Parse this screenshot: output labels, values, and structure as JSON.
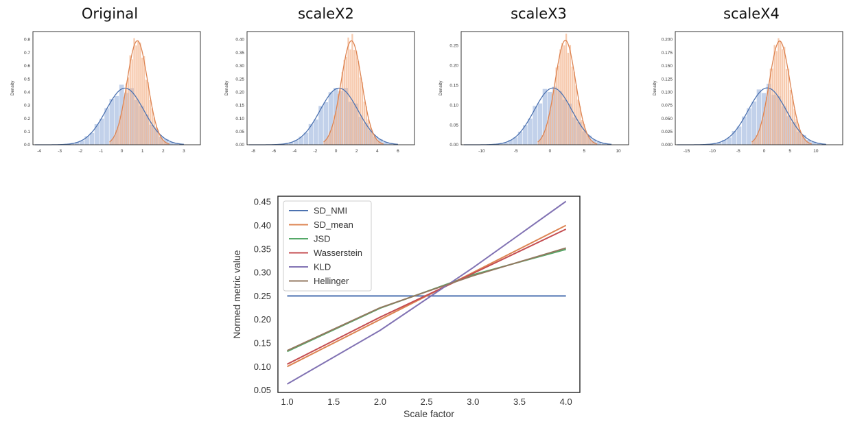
{
  "panels": [
    {
      "title": "Original",
      "ylabel": "Density",
      "xlim": [
        -4.3,
        3.8
      ],
      "ylim": [
        0,
        0.86
      ],
      "xticks": [
        "-4",
        "-3",
        "-2",
        "-1",
        "0",
        "1",
        "2",
        "3"
      ],
      "xtick_values": [
        -4,
        -3,
        -2,
        -1,
        0,
        1,
        2,
        3
      ],
      "yticks": [
        "0.0",
        "0.1",
        "0.2",
        "0.3",
        "0.4",
        "0.5",
        "0.6",
        "0.7",
        "0.8"
      ],
      "ytick_values": [
        0,
        0.1,
        0.2,
        0.3,
        0.4,
        0.5,
        0.6,
        0.7,
        0.8
      ],
      "blue": {
        "mean": 0.15,
        "sd": 0.92,
        "peak": 0.43,
        "range": [
          -4.2,
          3.0
        ]
      },
      "orange": {
        "mean": 0.75,
        "sd": 0.5,
        "peak": 0.79,
        "range": [
          -0.6,
          2.3
        ]
      }
    },
    {
      "title": "scaleX2",
      "ylabel": "Density",
      "xlim": [
        -8.6,
        7.6
      ],
      "ylim": [
        0,
        0.43
      ],
      "xticks": [
        "-8",
        "-6",
        "-4",
        "-2",
        "0",
        "2",
        "4",
        "6"
      ],
      "xtick_values": [
        -8,
        -6,
        -4,
        -2,
        0,
        2,
        4,
        6
      ],
      "yticks": [
        "0.00",
        "0.05",
        "0.10",
        "0.15",
        "0.20",
        "0.25",
        "0.30",
        "0.35",
        "0.40"
      ],
      "ytick_values": [
        0,
        0.05,
        0.1,
        0.15,
        0.2,
        0.25,
        0.3,
        0.35,
        0.4
      ],
      "blue": {
        "mean": 0.3,
        "sd": 1.84,
        "peak": 0.215,
        "range": [
          -8.4,
          6.0
        ]
      },
      "orange": {
        "mean": 1.5,
        "sd": 1.0,
        "peak": 0.395,
        "range": [
          -1.2,
          4.6
        ]
      }
    },
    {
      "title": "scaleX3",
      "ylabel": "Density",
      "xlim": [
        -13,
        11.5
      ],
      "ylim": [
        0,
        0.285
      ],
      "xticks": [
        "-10",
        "-5",
        "0",
        "5",
        "10"
      ],
      "xtick_values": [
        -10,
        -5,
        0,
        5,
        10
      ],
      "yticks": [
        "0.00",
        "0.05",
        "0.10",
        "0.15",
        "0.20",
        "0.25"
      ],
      "ytick_values": [
        0,
        0.05,
        0.1,
        0.15,
        0.2,
        0.25
      ],
      "blue": {
        "mean": 0.45,
        "sd": 2.76,
        "peak": 0.143,
        "range": [
          -12.6,
          9.0
        ]
      },
      "orange": {
        "mean": 2.25,
        "sd": 1.5,
        "peak": 0.263,
        "range": [
          -1.8,
          6.9
        ]
      }
    },
    {
      "title": "scaleX4",
      "ylabel": "Density",
      "xlim": [
        -17.2,
        15.2
      ],
      "ylim": [
        0,
        0.215
      ],
      "xticks": [
        "-15",
        "-10",
        "-5",
        "0",
        "5",
        "10"
      ],
      "xtick_values": [
        -15,
        -10,
        -5,
        0,
        5,
        10
      ],
      "yticks": [
        "0.000",
        "0.025",
        "0.050",
        "0.075",
        "0.100",
        "0.125",
        "0.150",
        "0.175",
        "0.200"
      ],
      "ytick_values": [
        0,
        0.025,
        0.05,
        0.075,
        0.1,
        0.125,
        0.15,
        0.175,
        0.2
      ],
      "blue": {
        "mean": 0.6,
        "sd": 3.68,
        "peak": 0.108,
        "range": [
          -16.8,
          12.0
        ]
      },
      "orange": {
        "mean": 3.0,
        "sd": 2.0,
        "peak": 0.197,
        "range": [
          -2.4,
          9.2
        ]
      }
    }
  ],
  "chart_data": {
    "type": "line",
    "xlabel": "Scale factor",
    "ylabel": "Normed metric value",
    "xlim": [
      0.9,
      4.15
    ],
    "ylim": [
      0.045,
      0.462
    ],
    "xticks": [
      "1.0",
      "1.5",
      "2.0",
      "2.5",
      "3.0",
      "3.5",
      "4.0"
    ],
    "xtick_values": [
      1.0,
      1.5,
      2.0,
      2.5,
      3.0,
      3.5,
      4.0
    ],
    "yticks": [
      "0.05",
      "0.10",
      "0.15",
      "0.20",
      "0.25",
      "0.30",
      "0.35",
      "0.40",
      "0.45"
    ],
    "ytick_values": [
      0.05,
      0.1,
      0.15,
      0.2,
      0.25,
      0.3,
      0.35,
      0.4,
      0.45
    ],
    "x": [
      1,
      2,
      3,
      4
    ],
    "grid": false,
    "legend": "top-left",
    "series": [
      {
        "name": "SD_NMI",
        "color": "#4c72b0",
        "values": [
          0.25,
          0.25,
          0.25,
          0.25
        ]
      },
      {
        "name": "SD_mean",
        "color": "#dd8452",
        "values": [
          0.1,
          0.2,
          0.3,
          0.4
        ]
      },
      {
        "name": "JSD",
        "color": "#55a868",
        "values": [
          0.132,
          0.224,
          0.295,
          0.349
        ]
      },
      {
        "name": "Wasserstein",
        "color": "#c44e52",
        "values": [
          0.105,
          0.205,
          0.298,
          0.392
        ]
      },
      {
        "name": "KLD",
        "color": "#8172b3",
        "values": [
          0.063,
          0.177,
          0.31,
          0.451
        ]
      },
      {
        "name": "Hellinger",
        "color": "#937860",
        "values": [
          0.134,
          0.225,
          0.293,
          0.352
        ]
      }
    ]
  }
}
